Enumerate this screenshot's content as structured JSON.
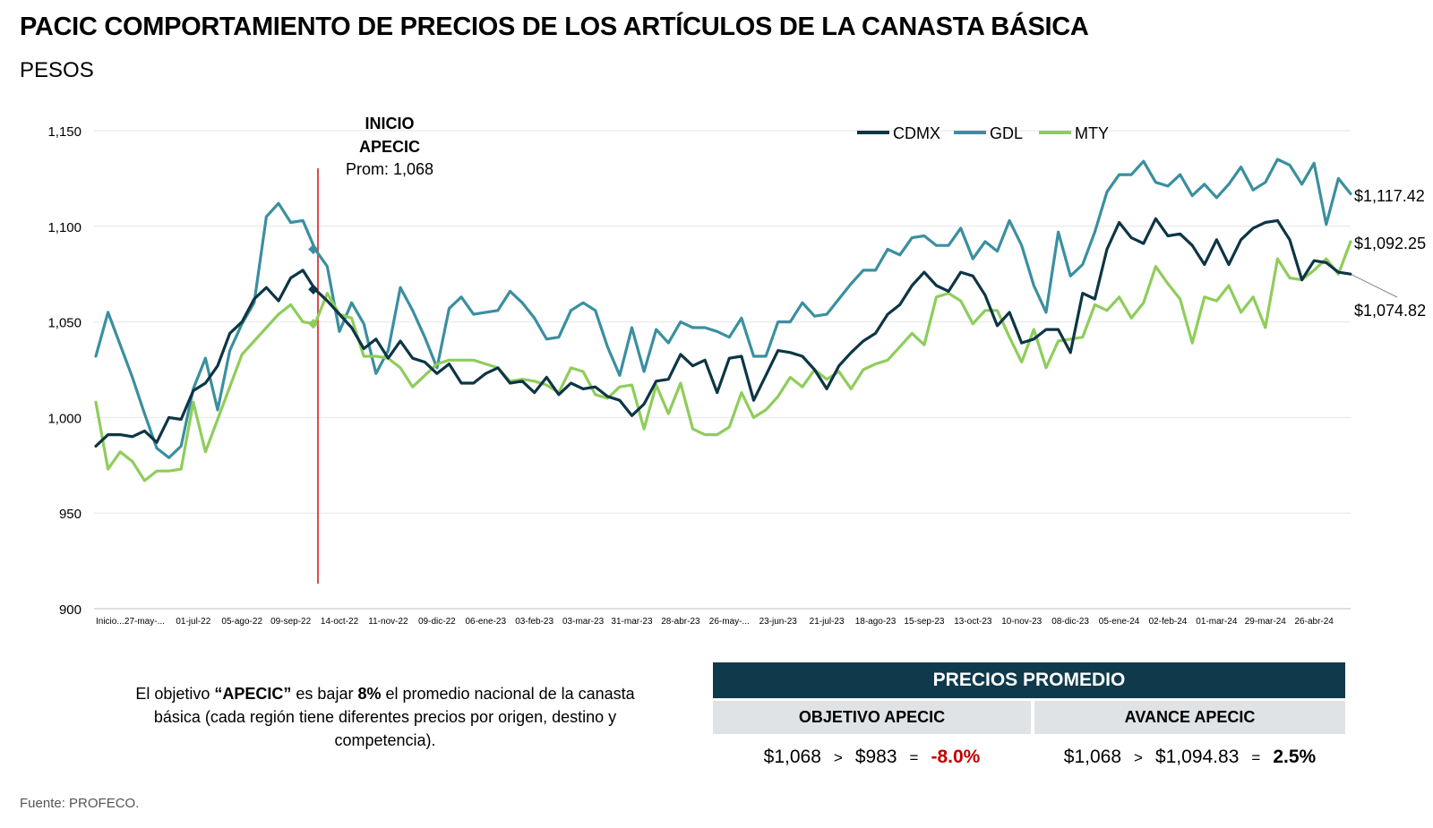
{
  "title": "PACIC COMPORTAMIENTO DE PRECIOS DE LOS ARTÍCULOS DE LA CANASTA BÁSICA",
  "subtitle": "PESOS",
  "chart_data": {
    "type": "line",
    "ylim": [
      900,
      1150
    ],
    "yticks": [
      "900",
      "950",
      "1,000",
      "1,050",
      "1,100",
      "1,150"
    ],
    "xlabels": [
      "Inicio...",
      "27-may-...",
      "01-jul-22",
      "05-ago-22",
      "09-sep-22",
      "14-oct-22",
      "11-nov-22",
      "09-dic-22",
      "06-ene-23",
      "03-feb-23",
      "03-mar-23",
      "31-mar-23",
      "28-abr-23",
      "26-may-...",
      "23-jun-23",
      "21-jul-23",
      "18-ago-23",
      "15-sep-23",
      "13-oct-23",
      "10-nov-23",
      "08-dic-23",
      "05-ene-24",
      "02-feb-24",
      "01-mar-24",
      "29-mar-24",
      "26-abr-24"
    ],
    "xlabel_step": 4,
    "grid": true,
    "legend_position": "top-right",
    "series": [
      {
        "name": "CDMX",
        "color": "#0d3545",
        "end_label": "$1,074.82",
        "values": [
          985,
          991,
          991,
          990,
          993,
          987,
          1000,
          999,
          1014,
          1018,
          1027,
          1044,
          1050,
          1062,
          1068,
          1061,
          1073,
          1077,
          1067,
          1061,
          1054,
          1047,
          1036,
          1041,
          1031,
          1040,
          1031,
          1029,
          1023,
          1028,
          1018,
          1018,
          1023,
          1026,
          1018,
          1019,
          1013,
          1021,
          1012,
          1018,
          1015,
          1016,
          1011,
          1009,
          1001,
          1007,
          1019,
          1020,
          1033,
          1027,
          1030,
          1013,
          1031,
          1032,
          1009,
          1022,
          1035,
          1034,
          1032,
          1025,
          1015,
          1027,
          1034,
          1040,
          1044,
          1054,
          1059,
          1069,
          1076,
          1069,
          1066,
          1076,
          1074,
          1064,
          1048,
          1055,
          1039,
          1041,
          1046,
          1046,
          1034,
          1065,
          1062,
          1088,
          1102,
          1094,
          1091,
          1104,
          1095,
          1096,
          1090,
          1080,
          1093,
          1080,
          1093,
          1099,
          1102,
          1103,
          1093,
          1072,
          1082,
          1081,
          1076,
          1075
        ]
      },
      {
        "name": "GDL",
        "color": "#3a8fa0",
        "end_label": "$1,117.42",
        "values": [
          1032,
          1055,
          1038,
          1021,
          1002,
          984,
          979,
          985,
          1015,
          1031,
          1004,
          1035,
          1049,
          1060,
          1105,
          1112,
          1102,
          1103,
          1088,
          1079,
          1045,
          1060,
          1049,
          1023,
          1035,
          1068,
          1056,
          1042,
          1026,
          1057,
          1063,
          1054,
          1055,
          1056,
          1066,
          1060,
          1052,
          1041,
          1042,
          1056,
          1060,
          1056,
          1037,
          1022,
          1047,
          1024,
          1046,
          1039,
          1050,
          1047,
          1047,
          1045,
          1042,
          1052,
          1032,
          1032,
          1050,
          1050,
          1060,
          1053,
          1054,
          1062,
          1070,
          1077,
          1077,
          1088,
          1085,
          1094,
          1095,
          1090,
          1090,
          1099,
          1083,
          1092,
          1087,
          1103,
          1090,
          1069,
          1055,
          1097,
          1074,
          1080,
          1097,
          1118,
          1127,
          1127,
          1134,
          1123,
          1121,
          1127,
          1116,
          1122,
          1115,
          1122,
          1131,
          1119,
          1123,
          1135,
          1132,
          1122,
          1133,
          1101,
          1125,
          1117
        ]
      },
      {
        "name": "MTY",
        "color": "#8fcd5a",
        "end_label": "$1,092.25",
        "values": [
          1008,
          973,
          982,
          977,
          967,
          972,
          972,
          973,
          1008,
          982,
          999,
          1016,
          1033,
          1040,
          1047,
          1054,
          1059,
          1050,
          1049,
          1065,
          1054,
          1052,
          1032,
          1032,
          1031,
          1026,
          1016,
          1022,
          1028,
          1030,
          1030,
          1030,
          1028,
          1026,
          1019,
          1020,
          1019,
          1017,
          1013,
          1026,
          1024,
          1012,
          1010,
          1016,
          1017,
          994,
          1017,
          1002,
          1018,
          994,
          991,
          991,
          995,
          1013,
          1000,
          1004,
          1011,
          1021,
          1016,
          1025,
          1020,
          1024,
          1015,
          1025,
          1028,
          1030,
          1037,
          1044,
          1038,
          1063,
          1065,
          1061,
          1049,
          1056,
          1056,
          1042,
          1029,
          1046,
          1026,
          1040,
          1041,
          1042,
          1059,
          1056,
          1063,
          1052,
          1060,
          1079,
          1070,
          1062,
          1039,
          1063,
          1061,
          1069,
          1055,
          1063,
          1047,
          1083,
          1073,
          1072,
          1077,
          1083,
          1075,
          1092
        ]
      }
    ],
    "annotation": {
      "line1": "INICIO",
      "line2": "APECIC",
      "line3": "Prom: 1,068",
      "x_index": 18
    }
  },
  "note": {
    "p1": "El objetivo ",
    "b1": "“APECIC”",
    "p2": " es bajar ",
    "b2": "8%",
    "p3": " el promedio nacional de la canasta básica (cada región tiene diferentes precios por origen, destino y competencia)."
  },
  "table": {
    "header": "PRECIOS PROMEDIO",
    "col1": "OBJETIVO APECIC",
    "col2": "AVANCE APECIC",
    "obj": {
      "a": "$1,068",
      "op1": ">",
      "b": "$983",
      "op2": "=",
      "r": "-8.0%"
    },
    "av": {
      "a": "$1,068",
      "op1": ">",
      "b": "$1,094.83",
      "op2": "=",
      "r": "2.5%"
    }
  },
  "source": "Fuente: PROFECO."
}
